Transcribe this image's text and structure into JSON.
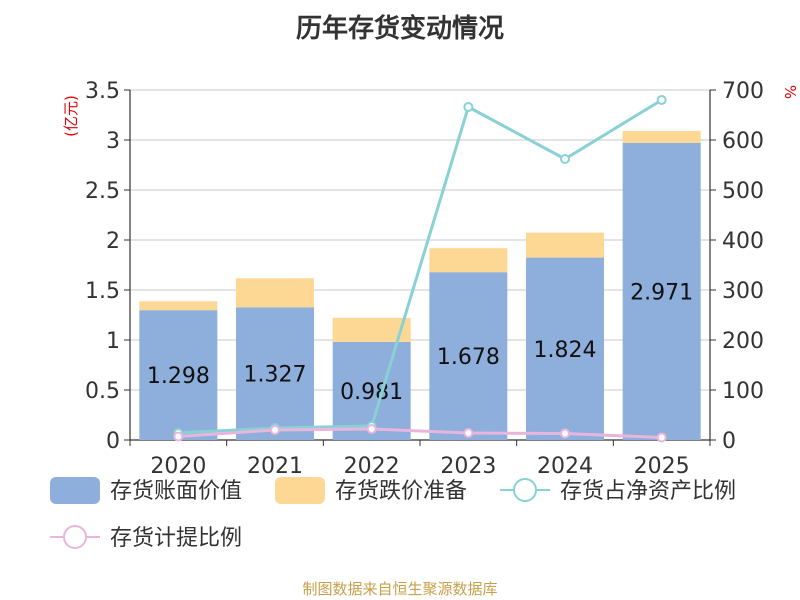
{
  "chart_data": {
    "type": "bar",
    "title": "历年存货变动情况",
    "source": "制图数据来自恒生聚源数据库",
    "left_unit": "(亿元)",
    "right_unit": "%",
    "categories": [
      "2020",
      "2021",
      "2022",
      "2023",
      "2024",
      "2025"
    ],
    "left_ylim": [
      0,
      3.5
    ],
    "left_ticks": [
      "0",
      "0.5",
      "1",
      "1.5",
      "2",
      "2.5",
      "3",
      "3.5"
    ],
    "right_ylim": [
      0,
      700
    ],
    "right_ticks": [
      "0",
      "100",
      "200",
      "300",
      "400",
      "500",
      "600",
      "700"
    ],
    "grid": true,
    "legend_position": "bottom",
    "series": [
      {
        "name": "存货账面价值",
        "kind": "bar-stack",
        "color": "#8eaedb",
        "values": [
          1.298,
          1.327,
          0.981,
          1.678,
          1.824,
          2.971
        ],
        "labels": [
          "1.298",
          "1.327",
          "0.981",
          "1.678",
          "1.824",
          "2.971"
        ]
      },
      {
        "name": "存货跌价准备",
        "kind": "bar-stack",
        "color": "#fdd794",
        "values": [
          0.09,
          0.29,
          0.24,
          0.24,
          0.25,
          0.12
        ]
      },
      {
        "name": "存货占净资产比例",
        "kind": "line-right",
        "color": "#88d1d4",
        "values": [
          14,
          24,
          28,
          666,
          562,
          680
        ]
      },
      {
        "name": "存货计提比例",
        "kind": "line-right",
        "color": "#e8b6dc",
        "values": [
          7,
          20,
          22,
          14,
          13,
          5
        ]
      }
    ]
  }
}
